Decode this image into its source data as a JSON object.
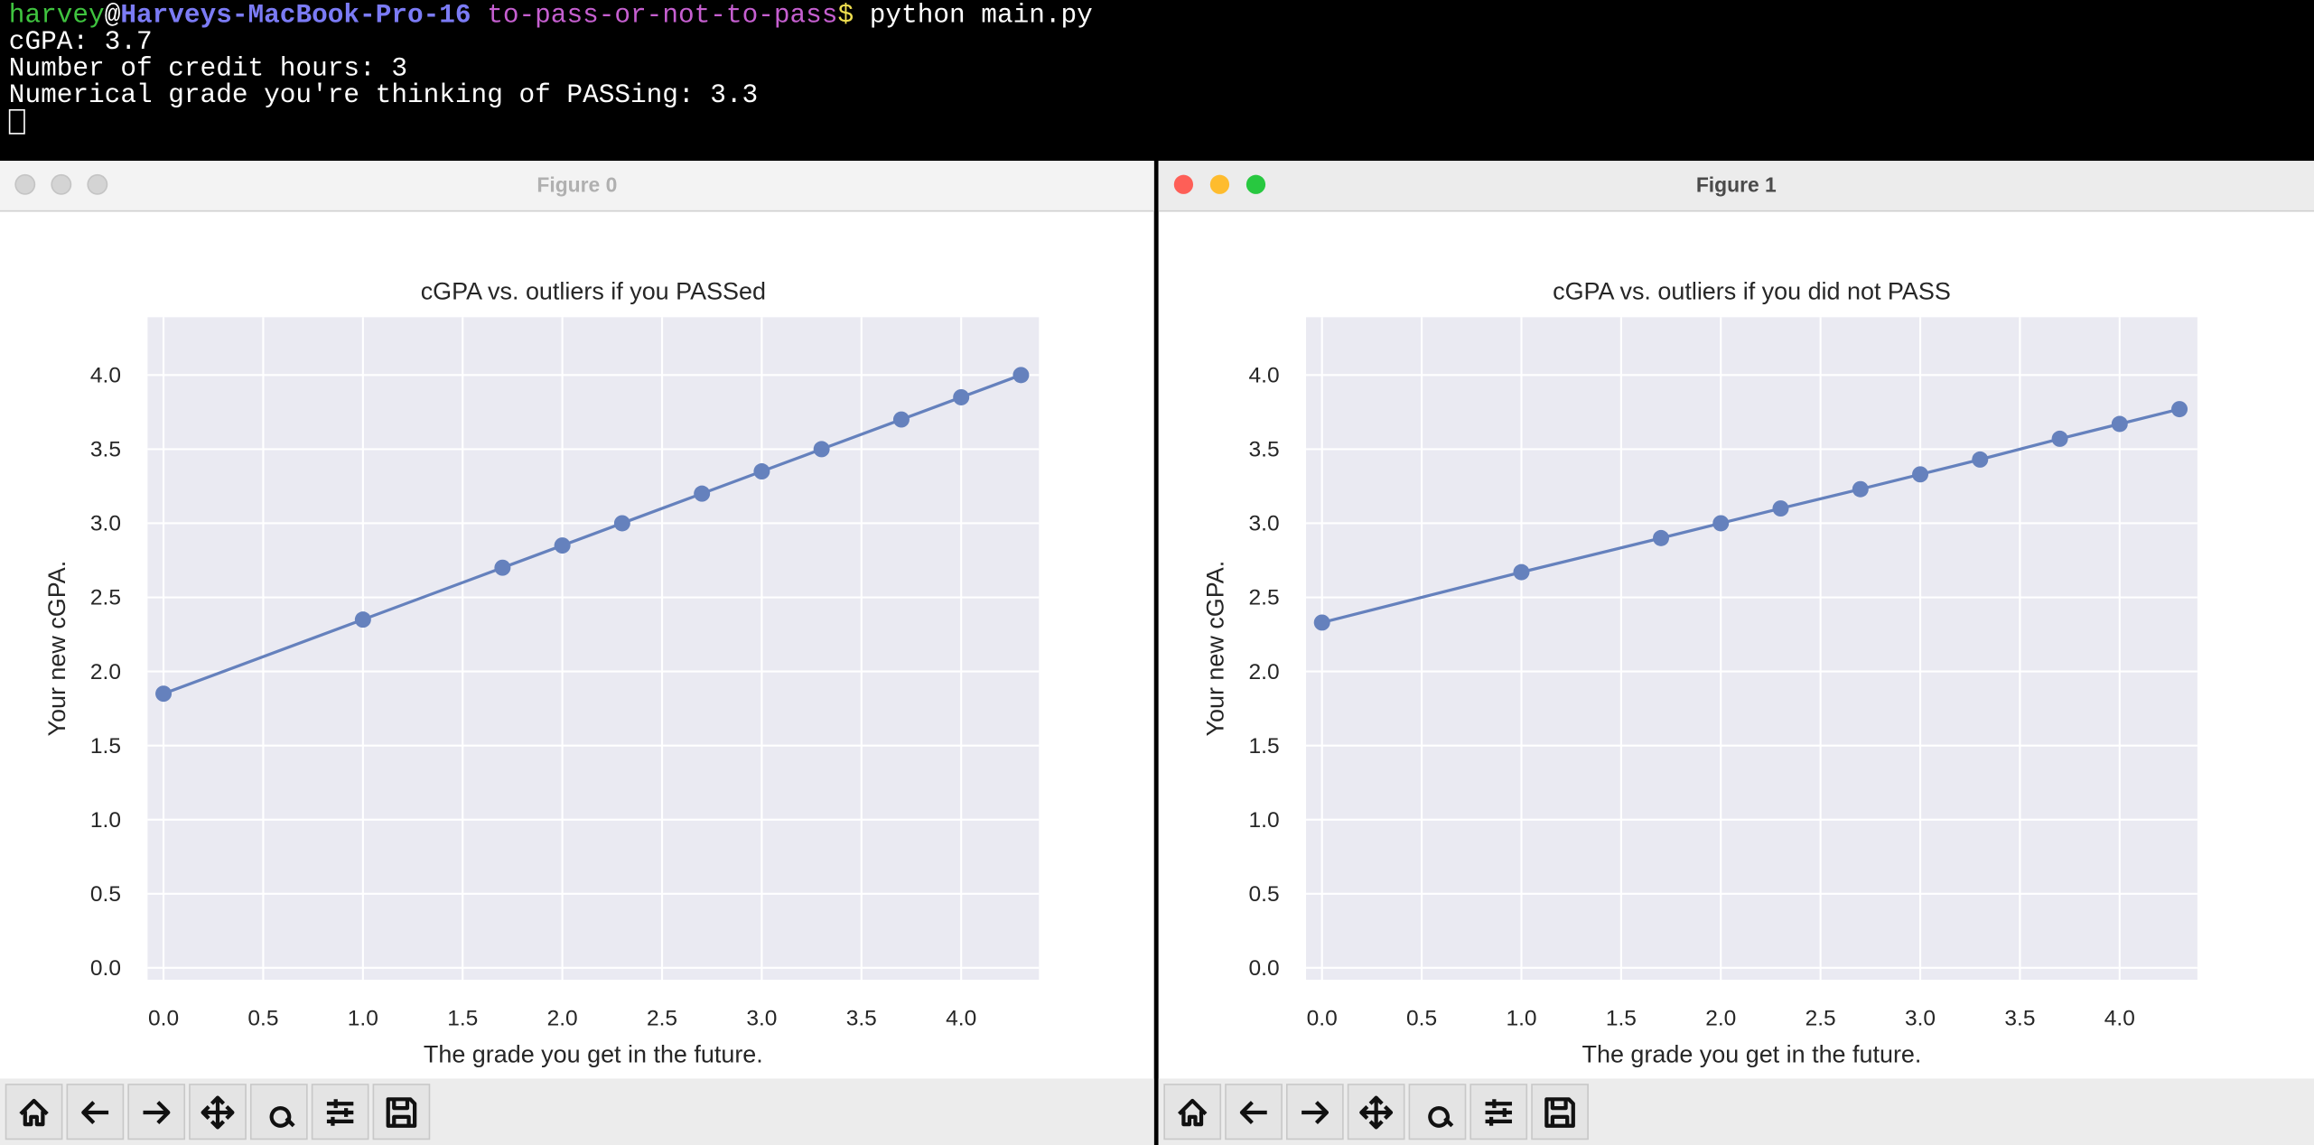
{
  "terminal": {
    "prompt": {
      "user": "harvey",
      "separator": "@",
      "host": "Harveys-MacBook-Pro-16",
      "dir": "to-pass-or-not-to-pass",
      "symbol": "$",
      "command": "python main.py"
    },
    "lines": [
      "cGPA: 3.7",
      "Number of credit hours: 3",
      "Numerical grade you're thinking of PASSing: 3.3"
    ]
  },
  "windows": [
    {
      "title": "Figure 0"
    },
    {
      "title": "Figure 1"
    }
  ],
  "chart_data": [
    {
      "type": "line",
      "title": "cGPA vs. outliers if you PASSed",
      "x_label": "The grade you get in the future.",
      "y_label": "Your new cGPA.",
      "x": [
        0,
        1,
        1.7,
        2,
        2.3,
        2.7,
        3,
        3.3,
        3.7,
        4,
        4.3
      ],
      "values": [
        1.85,
        2.35,
        2.7,
        2.85,
        3.0,
        3.2,
        3.35,
        3.5,
        3.7,
        3.85,
        4.0
      ],
      "color": "#6581bd",
      "xlim": [
        -0.08,
        4.39
      ],
      "ylim": [
        -0.08,
        4.39
      ],
      "grid": true,
      "xticks": [
        {
          "value": 0,
          "label": "0.0"
        },
        {
          "value": 0.5,
          "label": "0.5"
        },
        {
          "value": 1,
          "label": "1.0"
        },
        {
          "value": 1.5,
          "label": "1.5"
        },
        {
          "value": 2,
          "label": "2.0"
        },
        {
          "value": 2.5,
          "label": "2.5"
        },
        {
          "value": 3,
          "label": "3.0"
        },
        {
          "value": 3.5,
          "label": "3.5"
        },
        {
          "value": 4,
          "label": "4.0"
        }
      ],
      "yticks": [
        {
          "value": 0,
          "label": "0.0"
        },
        {
          "value": 0.5,
          "label": "0.5"
        },
        {
          "value": 1,
          "label": "1.0"
        },
        {
          "value": 1.5,
          "label": "1.5"
        },
        {
          "value": 2,
          "label": "2.0"
        },
        {
          "value": 2.5,
          "label": "2.5"
        },
        {
          "value": 3,
          "label": "3.0"
        },
        {
          "value": 3.5,
          "label": "3.5"
        },
        {
          "value": 4,
          "label": "4.0"
        }
      ]
    },
    {
      "type": "line",
      "title": "cGPA vs. outliers if you did not PASS",
      "x_label": "The grade you get in the future.",
      "y_label": "Your new cGPA.",
      "x": [
        0,
        1,
        1.7,
        2,
        2.3,
        2.7,
        3,
        3.3,
        3.7,
        4,
        4.3
      ],
      "values": [
        2.33,
        2.67,
        2.9,
        3.0,
        3.1,
        3.23,
        3.33,
        3.43,
        3.57,
        3.67,
        3.77
      ],
      "color": "#6581bd",
      "xlim": [
        -0.08,
        4.39
      ],
      "ylim": [
        -0.08,
        4.39
      ],
      "grid": true,
      "xticks": [
        {
          "value": 0,
          "label": "0.0"
        },
        {
          "value": 0.5,
          "label": "0.5"
        },
        {
          "value": 1,
          "label": "1.0"
        },
        {
          "value": 1.5,
          "label": "1.5"
        },
        {
          "value": 2,
          "label": "2.0"
        },
        {
          "value": 2.5,
          "label": "2.5"
        },
        {
          "value": 3,
          "label": "3.0"
        },
        {
          "value": 3.5,
          "label": "3.5"
        },
        {
          "value": 4,
          "label": "4.0"
        }
      ],
      "yticks": [
        {
          "value": 0,
          "label": "0.0"
        },
        {
          "value": 0.5,
          "label": "0.5"
        },
        {
          "value": 1,
          "label": "1.0"
        },
        {
          "value": 1.5,
          "label": "1.5"
        },
        {
          "value": 2,
          "label": "2.0"
        },
        {
          "value": 2.5,
          "label": "2.5"
        },
        {
          "value": 3,
          "label": "3.0"
        },
        {
          "value": 3.5,
          "label": "3.5"
        },
        {
          "value": 4,
          "label": "4.0"
        }
      ]
    }
  ]
}
